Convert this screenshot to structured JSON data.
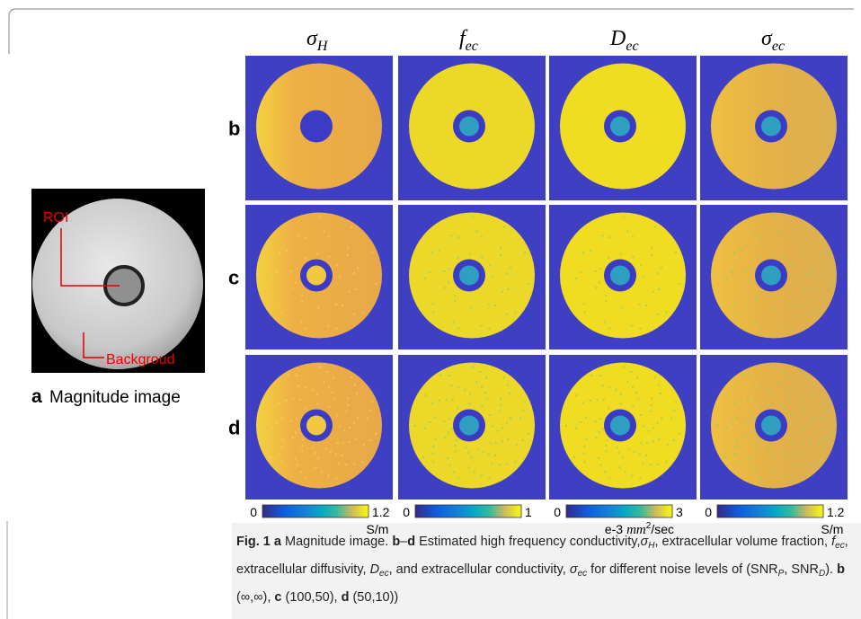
{
  "panel_a": {
    "label": "a",
    "title": "Magnitude image",
    "annotations": [
      "ROI",
      "Backgroud"
    ]
  },
  "columns": [
    {
      "symbol": "σ",
      "subscript": "H"
    },
    {
      "symbol": "f",
      "subscript": "ec"
    },
    {
      "symbol": "D",
      "subscript": "ec"
    },
    {
      "symbol": "σ",
      "subscript": "ec"
    }
  ],
  "rows": [
    "b",
    "c",
    "d"
  ],
  "colorbars": [
    {
      "min": 0,
      "max": 1.2,
      "unit": "S/m"
    },
    {
      "min": 0,
      "max": 1
    },
    {
      "min": 0,
      "max": 3,
      "unit_prefix": "e-3",
      "unit_base": "mm",
      "unit_power": "2",
      "unit_suffix": "/sec"
    },
    {
      "min": 0,
      "max": 1.2,
      "unit": "S/m"
    }
  ],
  "caption": {
    "label": "Fig. 1",
    "segments": [
      {
        "text": "a",
        "style": "bold"
      },
      {
        "text": " Magnitude image. "
      },
      {
        "text": "b",
        "style": "bold"
      },
      {
        "text": "–"
      },
      {
        "text": "d",
        "style": "bold"
      },
      {
        "text": " Estimated high frequency conductivity,"
      },
      {
        "text": "σ",
        "style": "italic"
      },
      {
        "text": "H",
        "style": "italic-sub"
      },
      {
        "text": ", extracellular volume fraction, "
      },
      {
        "text": "f",
        "style": "italic"
      },
      {
        "text": "ec",
        "style": "italic-sub"
      },
      {
        "text": ", extracellular diffusivity, "
      },
      {
        "text": "D",
        "style": "italic"
      },
      {
        "text": "ec",
        "style": "italic-sub"
      },
      {
        "text": ", and extracellular conductivity, "
      },
      {
        "text": "σ",
        "style": "italic"
      },
      {
        "text": "ec",
        "style": "italic-sub"
      },
      {
        "text": " for different noise levels of (SNR"
      },
      {
        "text": "P",
        "style": "italic-sub"
      },
      {
        "text": ", SNR"
      },
      {
        "text": "D",
        "style": "italic-sub"
      },
      {
        "text": "). "
      },
      {
        "text": "b",
        "style": "bold"
      },
      {
        "text": " (∞,∞), "
      },
      {
        "text": "c",
        "style": "bold"
      },
      {
        "text": " (100,50), "
      },
      {
        "text": "d",
        "style": "bold"
      },
      {
        "text": " (50,10))"
      }
    ]
  }
}
